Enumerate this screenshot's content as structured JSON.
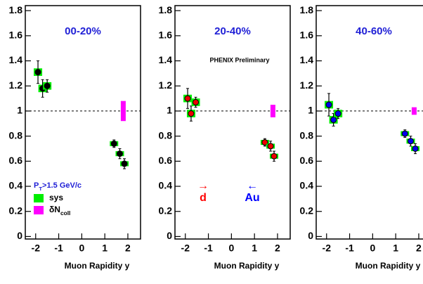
{
  "chart_data": [
    {
      "type": "scatter",
      "title": "00-20%",
      "x_label": "Muon Rapidity y",
      "xlim": [
        -2.45,
        2.55
      ],
      "xticks": [
        -2,
        -1,
        0,
        1,
        2
      ],
      "ylim": [
        -0.02,
        1.84
      ],
      "yticks": [
        0,
        0.2,
        0.4,
        0.6,
        0.8,
        1,
        1.2,
        1.4,
        1.6,
        1.8
      ],
      "reference_line": 1,
      "norm_x": 1.8,
      "norm_uncertainty": 0.08,
      "norm_color": "#ff00ff",
      "sys_color": "#00ee00",
      "series": [
        {
          "color": "#000000",
          "x": [
            -1.9,
            -1.7,
            -1.5,
            1.4,
            1.65,
            1.85
          ],
          "values": [
            1.31,
            1.18,
            1.2,
            0.74,
            0.66,
            0.58
          ],
          "errors": [
            0.09,
            0.07,
            0.05,
            0.03,
            0.04,
            0.04
          ],
          "sys_errors": [
            0.03,
            0.03,
            0.03,
            0.02,
            0.02,
            0.02
          ]
        }
      ],
      "legend": {
        "title": {
          "main": "P",
          "sub": "T",
          "rest": ">1.5 GeV/c"
        },
        "items": [
          {
            "label": {
              "main": "sys"
            },
            "color": "#00ee00"
          },
          {
            "label": {
              "main": "δN",
              "sub": "coll"
            },
            "color": "#ff00ff"
          }
        ]
      }
    },
    {
      "type": "scatter",
      "title": "20-40%",
      "x_label": "Muon Rapidity y",
      "annotation": "PHENIX Preliminary",
      "direction_labels": [
        {
          "arrow": "→",
          "text": "d",
          "color": "#ff0000"
        },
        {
          "arrow": "←",
          "text": "Au",
          "color": "#0000ff"
        }
      ],
      "xlim": [
        -2.45,
        2.55
      ],
      "xticks": [
        -2,
        -1,
        0,
        1,
        2
      ],
      "ylim": [
        -0.02,
        1.84
      ],
      "yticks": [
        0,
        0.2,
        0.4,
        0.6,
        0.8,
        1,
        1.2,
        1.4,
        1.6,
        1.8
      ],
      "reference_line": 1,
      "norm_x": 1.8,
      "norm_uncertainty": 0.05,
      "norm_color": "#ff00ff",
      "sys_color": "#00ee00",
      "series": [
        {
          "color": "#ee0000",
          "x": [
            -1.9,
            -1.75,
            -1.55,
            1.45,
            1.7,
            1.85
          ],
          "values": [
            1.1,
            0.98,
            1.07,
            0.75,
            0.72,
            0.64
          ],
          "errors": [
            0.08,
            0.06,
            0.04,
            0.03,
            0.04,
            0.04
          ],
          "sys_errors": [
            0.03,
            0.03,
            0.03,
            0.02,
            0.02,
            0.02
          ]
        }
      ]
    },
    {
      "type": "scatter",
      "title": "40-60%",
      "x_label": "Muon Rapidity y",
      "xlim": [
        -2.45,
        2.55
      ],
      "xticks": [
        -2,
        -1,
        0,
        1,
        2
      ],
      "ylim": [
        -0.02,
        1.84
      ],
      "yticks": [
        0,
        0.2,
        0.4,
        0.6,
        0.8,
        1,
        1.2,
        1.4,
        1.6,
        1.8
      ],
      "reference_line": 1,
      "norm_x": 1.8,
      "norm_uncertainty": 0.03,
      "norm_color": "#ff00ff",
      "sys_color": "#00ee00",
      "series": [
        {
          "color": "#0000ee",
          "x": [
            -1.9,
            -1.7,
            -1.5,
            1.4,
            1.65,
            1.85
          ],
          "values": [
            1.05,
            0.93,
            0.98,
            0.82,
            0.76,
            0.7
          ],
          "errors": [
            0.09,
            0.05,
            0.04,
            0.03,
            0.04,
            0.04
          ],
          "sys_errors": [
            0.03,
            0.03,
            0.03,
            0.02,
            0.02,
            0.02
          ]
        }
      ]
    }
  ]
}
